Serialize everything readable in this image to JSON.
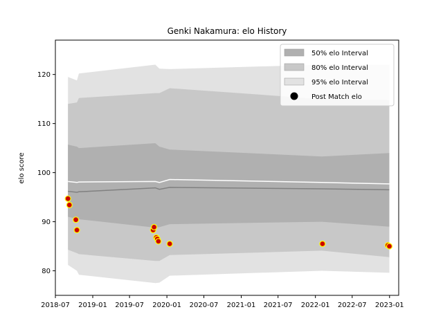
{
  "chart_data": {
    "type": "line",
    "title": "Genki Nakamura: elo History",
    "xlabel": "",
    "ylabel": "elo score",
    "xlim": [
      "2018-07-01",
      "2023-02-15"
    ],
    "ylim": [
      75,
      127
    ],
    "x_ticks": [
      "2018-07",
      "2019-01",
      "2019-07",
      "2020-01",
      "2020-07",
      "2021-01",
      "2021-07",
      "2022-01",
      "2022-07",
      "2023-01"
    ],
    "x_tick_labels": [
      "2018-07",
      "2019-01",
      "2019-07",
      "2020-01",
      "2020-07",
      "2021-01",
      "2021-07",
      "2022-01",
      "2022-07",
      "2023-01"
    ],
    "y_ticks": [
      80,
      90,
      100,
      110,
      120
    ],
    "y_tick_labels": [
      "80",
      "90",
      "100",
      "110",
      "120"
    ],
    "grid": false,
    "legend_position": "top-right",
    "legend": [
      {
        "label": "50% elo Interval",
        "color": "#b0b0b0",
        "kind": "patch"
      },
      {
        "label": "80% elo Interval",
        "color": "#c8c8c8",
        "kind": "patch"
      },
      {
        "label": "95% elo Interval",
        "color": "#e2e2e2",
        "kind": "patch"
      },
      {
        "label": "Post Match elo",
        "color": "#000000",
        "kind": "marker"
      }
    ],
    "bands": {
      "x": [
        "2018-09-01",
        "2018-10-15",
        "2018-10-25",
        "2019-11-05",
        "2019-11-25",
        "2020-01-15",
        "2022-02-01",
        "2022-12-31"
      ],
      "interval_95": {
        "color": "#e2e2e2",
        "lower": [
          81.2,
          80.0,
          79.2,
          77.5,
          77.6,
          79.0,
          80.0,
          79.6
        ],
        "upper": [
          119.5,
          118.8,
          120.2,
          122.0,
          121.2,
          121.1,
          122.0,
          122.0
        ]
      },
      "interval_80": {
        "color": "#c8c8c8",
        "lower": [
          84.3,
          83.6,
          83.4,
          82.0,
          82.0,
          83.2,
          84.1,
          82.8
        ],
        "upper": [
          114.0,
          114.3,
          115.2,
          116.2,
          116.2,
          117.2,
          115.0,
          114.8
        ]
      },
      "interval_50": {
        "color": "#b0b0b0",
        "lower": [
          91.0,
          90.6,
          90.5,
          88.8,
          88.9,
          89.5,
          90.0,
          89.0
        ],
        "upper": [
          105.7,
          105.3,
          105.0,
          106.0,
          105.3,
          104.7,
          103.3,
          104.0
        ]
      }
    },
    "series": [
      {
        "kind": "line",
        "color": "#ffffff",
        "x": [
          "2018-09-01",
          "2018-10-15",
          "2018-10-25",
          "2019-11-05",
          "2019-11-25",
          "2020-01-15",
          "2022-02-01",
          "2022-12-31"
        ],
        "y": [
          98.2,
          98.0,
          98.1,
          98.2,
          98.0,
          98.6,
          98.0,
          97.7
        ]
      },
      {
        "kind": "line",
        "color": "#808080",
        "x": [
          "2018-09-01",
          "2018-10-15",
          "2018-10-25",
          "2019-11-05",
          "2019-11-25",
          "2020-01-15",
          "2022-02-01",
          "2022-12-31"
        ],
        "y": [
          96.2,
          96.0,
          96.1,
          96.9,
          96.6,
          97.0,
          96.7,
          96.5
        ]
      },
      {
        "name": "Post Match elo",
        "kind": "scatter",
        "color": "#cc0000",
        "edgecolor": "#ffff00",
        "x": [
          "2018-09-01",
          "2018-09-08",
          "2018-10-10",
          "2018-10-15",
          "2019-10-25",
          "2019-10-30",
          "2019-11-10",
          "2019-11-15",
          "2019-11-20",
          "2020-01-15",
          "2022-02-05",
          "2022-12-24",
          "2022-12-31"
        ],
        "y": [
          94.7,
          93.4,
          90.4,
          88.3,
          88.3,
          88.9,
          86.8,
          86.5,
          86.0,
          85.5,
          85.5,
          85.2,
          85.0
        ]
      }
    ]
  }
}
